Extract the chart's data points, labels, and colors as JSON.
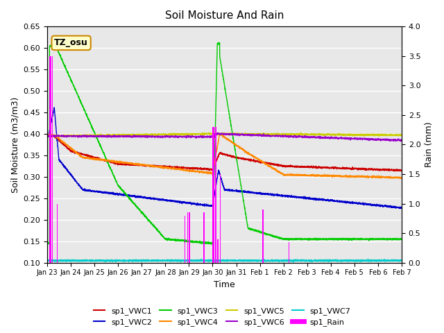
{
  "title": "Soil Moisture And Rain",
  "xlabel": "Time",
  "ylabel_left": "Soil Moisture (m3/m3)",
  "ylabel_right": "Rain (mm)",
  "ylim_left": [
    0.1,
    0.65
  ],
  "ylim_right": [
    0.0,
    4.0
  ],
  "background_color": "#e8e8e8",
  "annotation_text": "TZ_osu",
  "annotation_box_color": "#ffffcc",
  "annotation_box_edge": "#cc8800",
  "series_colors": {
    "sp1_VWC1": "#cc0000",
    "sp1_VWC2": "#0000cc",
    "sp1_VWC3": "#00cc00",
    "sp1_VWC4": "#ff8800",
    "sp1_VWC5": "#cccc00",
    "sp1_VWC6": "#9900cc",
    "sp1_VWC7": "#00cccc",
    "sp1_Rain": "#ff00ff"
  },
  "x_tick_labels": [
    "Jan 23",
    "Jan 24",
    "Jan 25",
    "Jan 26",
    "Jan 27",
    "Jan 28",
    "Jan 29",
    "Jan 30",
    "Jan 31",
    "Feb 1",
    "Feb 2",
    "Feb 3",
    "Feb 4",
    "Feb 5",
    "Feb 6",
    "Feb 7"
  ],
  "n_points": 3360
}
